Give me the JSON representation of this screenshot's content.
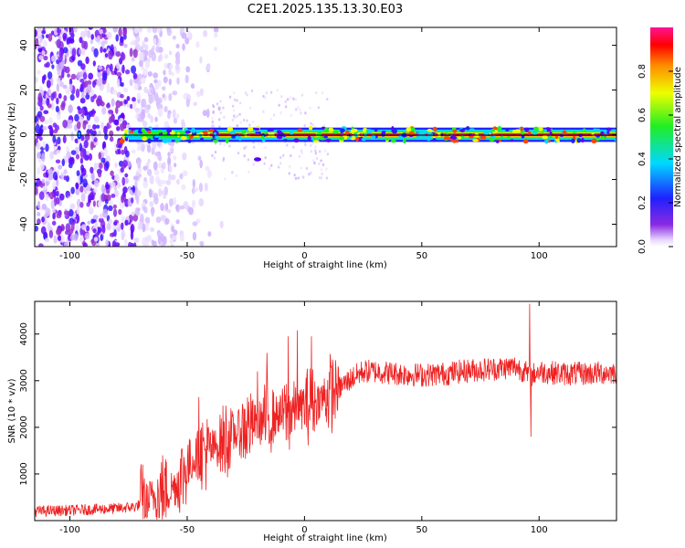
{
  "title": "C2E1.2025.135.13.30.E03",
  "colors": {
    "snr_line": "#ee2222",
    "center_line": "#000000",
    "background": "#ffffff"
  },
  "chart_data": [
    {
      "type": "heatmap",
      "title": "C2E1.2025.135.13.30.E03",
      "xlabel": "Height of straight line (km)",
      "ylabel": "Frequency (Hz)",
      "xlim": [
        -115,
        133
      ],
      "ylim": [
        -50,
        48
      ],
      "xticks": [
        -100,
        -50,
        0,
        50,
        100
      ],
      "yticks": [
        -40,
        -20,
        0,
        20,
        40
      ],
      "colorbar": {
        "label": "Normalized spectral amplitude",
        "range": [
          0,
          1
        ],
        "ticks": [
          0.0,
          0.2,
          0.4,
          0.6,
          0.8
        ],
        "colormap": "rainbow (white, violet, blue, cyan, green, yellow, red, magenta)"
      },
      "features": {
        "center_line_frequency_hz": 0,
        "strong_signal_x_range": [
          -75,
          133
        ],
        "broadband_noise_x_range": [
          -115,
          -40
        ]
      }
    },
    {
      "type": "line",
      "xlabel": "Height of straight line (km)",
      "ylabel": "SNR (10 * v/v)",
      "xlim": [
        -115,
        133
      ],
      "ylim": [
        0,
        4700
      ],
      "xticks": [
        -100,
        -50,
        0,
        50,
        100
      ],
      "yticks": [
        1000,
        2000,
        3000,
        4000
      ],
      "envelope": {
        "x": [
          -115,
          -100,
          -80,
          -72,
          -65,
          -55,
          -50,
          -45,
          -40,
          -35,
          -25,
          -15,
          -5,
          0,
          5,
          10,
          15,
          20,
          25,
          30,
          40,
          50,
          60,
          70,
          80,
          90,
          94,
          96,
          98,
          100,
          110,
          120,
          133
        ],
        "y": [
          200,
          220,
          260,
          300,
          500,
          750,
          1150,
          1450,
          1500,
          1700,
          2000,
          2200,
          2350,
          2450,
          2550,
          2700,
          2850,
          3050,
          3200,
          3200,
          3150,
          3120,
          3150,
          3220,
          3250,
          3300,
          3200,
          3050,
          3150,
          3200,
          3150,
          3150,
          3180
        ]
      },
      "spikes": [
        {
          "x": -45,
          "y": 2650
        },
        {
          "x": -20,
          "y": 3200
        },
        {
          "x": -16,
          "y": 3600
        },
        {
          "x": -7,
          "y": 3950
        },
        {
          "x": -3,
          "y": 4080
        },
        {
          "x": 3,
          "y": 3950
        },
        {
          "x": 96,
          "y": 4650
        },
        {
          "x": 96.5,
          "y": 1800
        }
      ]
    }
  ]
}
